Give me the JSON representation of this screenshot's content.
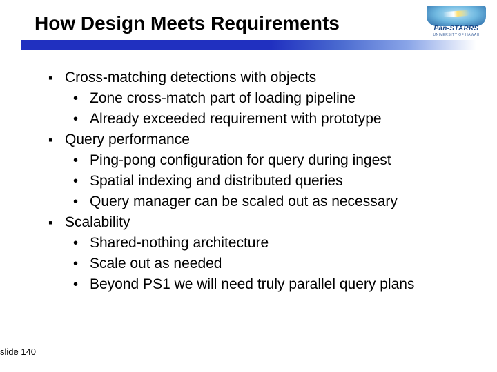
{
  "title": "How Design Meets Requirements",
  "logo": {
    "name": "Pan-STARRS",
    "subtitle": "UNIVERSITY OF HAWAII"
  },
  "colors": {
    "bar_start": "#2030c0",
    "bar_end": "#ffffff",
    "text": "#000000",
    "background": "#ffffff"
  },
  "fonts": {
    "title_size": 28,
    "body_size": 21
  },
  "bullets": [
    {
      "text": "Cross-matching detections with objects",
      "sub": [
        "Zone cross-match part of loading pipeline",
        "Already exceeded requirement with prototype"
      ]
    },
    {
      "text": "Query performance",
      "sub": [
        "Ping-pong configuration for query during ingest",
        "Spatial indexing and distributed queries",
        "Query manager can be scaled out as necessary"
      ]
    },
    {
      "text": "Scalability",
      "sub": [
        "Shared-nothing architecture",
        "Scale out as needed",
        "Beyond PS1 we will need truly parallel query plans"
      ]
    }
  ],
  "slide_number": "slide 140"
}
